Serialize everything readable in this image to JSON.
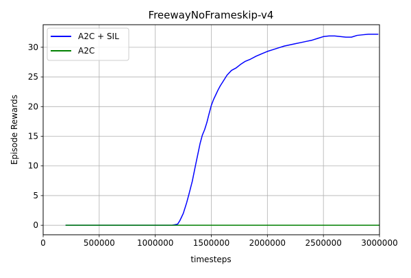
{
  "chart_data": {
    "type": "line",
    "title": "FreewayNoFrameskip-v4",
    "xlabel": "timesteps",
    "ylabel": "Episode Rewards",
    "xlim": [
      0,
      3000000
    ],
    "ylim": [
      -1.6,
      33.8
    ],
    "xticks": [
      0,
      500000,
      1000000,
      1500000,
      2000000,
      2500000,
      3000000
    ],
    "xtick_labels": [
      "0",
      "500000",
      "1000000",
      "1500000",
      "2000000",
      "2500000",
      "3000000"
    ],
    "yticks": [
      0,
      5,
      10,
      15,
      20,
      25,
      30
    ],
    "ytick_labels": [
      "0",
      "5",
      "10",
      "15",
      "20",
      "25",
      "30"
    ],
    "grid": true,
    "legend_position": "upper left",
    "series": [
      {
        "name": "A2C + SIL",
        "color": "#0000ff",
        "x": [
          200000,
          1150000,
          1200000,
          1220000,
          1250000,
          1280000,
          1300000,
          1330000,
          1360000,
          1380000,
          1400000,
          1420000,
          1440000,
          1460000,
          1480000,
          1500000,
          1520000,
          1540000,
          1560000,
          1580000,
          1600000,
          1640000,
          1680000,
          1720000,
          1760000,
          1800000,
          1850000,
          1900000,
          1950000,
          2000000,
          2050000,
          2100000,
          2150000,
          2200000,
          2250000,
          2300000,
          2350000,
          2400000,
          2450000,
          2500000,
          2550000,
          2600000,
          2650000,
          2700000,
          2750000,
          2800000,
          2850000,
          2900000,
          2950000,
          2990000
        ],
        "y": [
          0,
          0,
          0.2,
          0.8,
          2.0,
          3.8,
          5.2,
          7.4,
          10.2,
          12.0,
          13.8,
          15.2,
          16.1,
          17.3,
          18.8,
          20.2,
          21.2,
          22.0,
          22.8,
          23.5,
          24.1,
          25.3,
          26.1,
          26.5,
          27.1,
          27.6,
          28.0,
          28.5,
          28.9,
          29.3,
          29.6,
          29.9,
          30.2,
          30.4,
          30.6,
          30.8,
          31.0,
          31.2,
          31.5,
          31.8,
          31.9,
          31.9,
          31.8,
          31.7,
          31.7,
          32.0,
          32.1,
          32.2,
          32.2,
          32.2
        ]
      },
      {
        "name": "A2C",
        "color": "#008000",
        "x": [
          200000,
          3000000
        ],
        "y": [
          0,
          0
        ]
      }
    ]
  }
}
